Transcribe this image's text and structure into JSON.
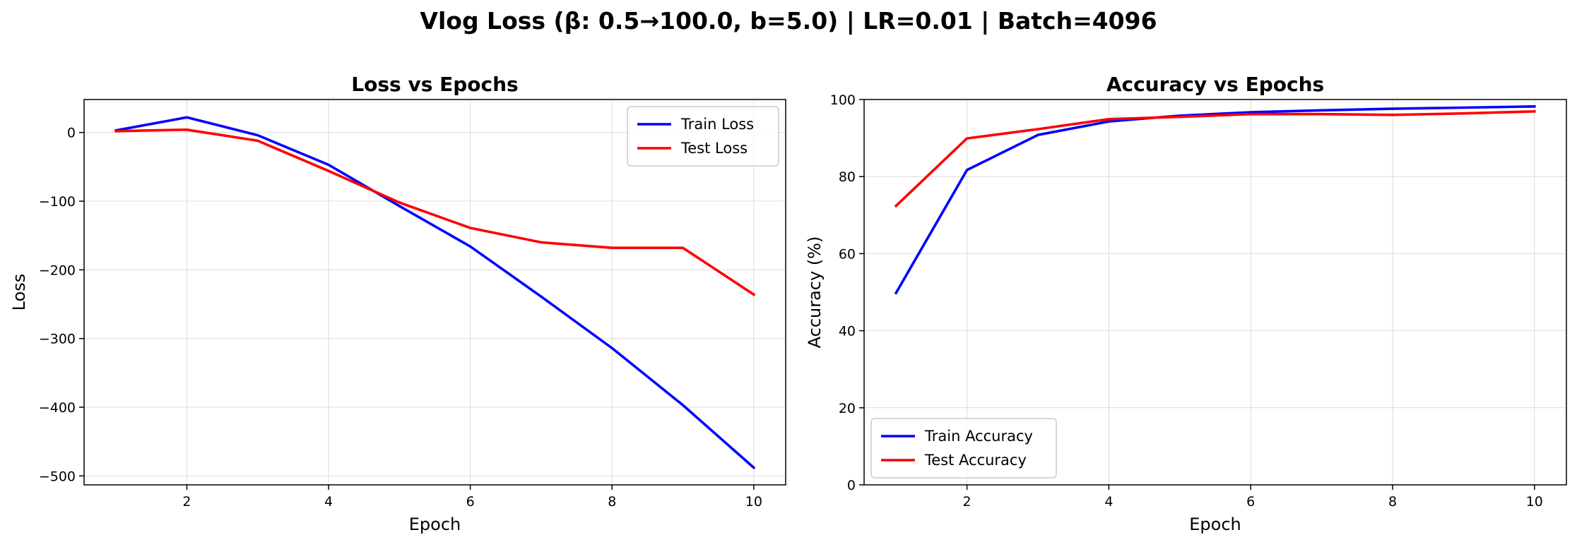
{
  "figure": {
    "suptitle": "Vlog Loss (β: 0.5→100.0, b=5.0) | LR=0.01 | Batch=4096"
  },
  "chart_data": [
    {
      "type": "line",
      "title": "Loss vs Epochs",
      "xlabel": "Epoch",
      "ylabel": "Loss",
      "xlim": [
        0.55,
        10.45
      ],
      "ylim": [
        -513,
        48
      ],
      "xticks": [
        2,
        4,
        6,
        8,
        10
      ],
      "yticks": [
        0,
        -100,
        -200,
        -300,
        -400,
        -500
      ],
      "ytick_labels": [
        "0",
        "−100",
        "−200",
        "−300",
        "−400",
        "−500"
      ],
      "grid": true,
      "legend_position": "upper right",
      "x": [
        1,
        2,
        3,
        4,
        5,
        6,
        7,
        8,
        9,
        10
      ],
      "series": [
        {
          "name": "Train Loss",
          "color": "#0000ff",
          "values": [
            3,
            22,
            -4,
            -47,
            -107,
            -166,
            -239,
            -314,
            -397,
            -488
          ]
        },
        {
          "name": "Test Loss",
          "color": "#ff0000",
          "values": [
            2,
            4,
            -12,
            -56,
            -102,
            -139,
            -160,
            -168,
            -168,
            -236
          ]
        }
      ]
    },
    {
      "type": "line",
      "title": "Accuracy vs Epochs",
      "xlabel": "Epoch",
      "ylabel": "Accuracy (%)",
      "xlim": [
        0.55,
        10.45
      ],
      "ylim": [
        0,
        100
      ],
      "xticks": [
        2,
        4,
        6,
        8,
        10
      ],
      "yticks": [
        0,
        20,
        40,
        60,
        80,
        100
      ],
      "ytick_labels": [
        "0",
        "20",
        "40",
        "60",
        "80",
        "100"
      ],
      "grid": true,
      "legend_position": "lower left",
      "x": [
        1,
        2,
        3,
        4,
        5,
        6,
        7,
        8,
        9,
        10
      ],
      "series": [
        {
          "name": "Train Accuracy",
          "color": "#0000ff",
          "values": [
            49.8,
            81.7,
            90.8,
            94.3,
            95.8,
            96.7,
            97.2,
            97.6,
            97.9,
            98.2
          ]
        },
        {
          "name": "Test Accuracy",
          "color": "#ff0000",
          "values": [
            72.4,
            89.9,
            92.3,
            94.9,
            95.5,
            96.2,
            96.2,
            96.0,
            96.4,
            96.9
          ]
        }
      ]
    }
  ]
}
